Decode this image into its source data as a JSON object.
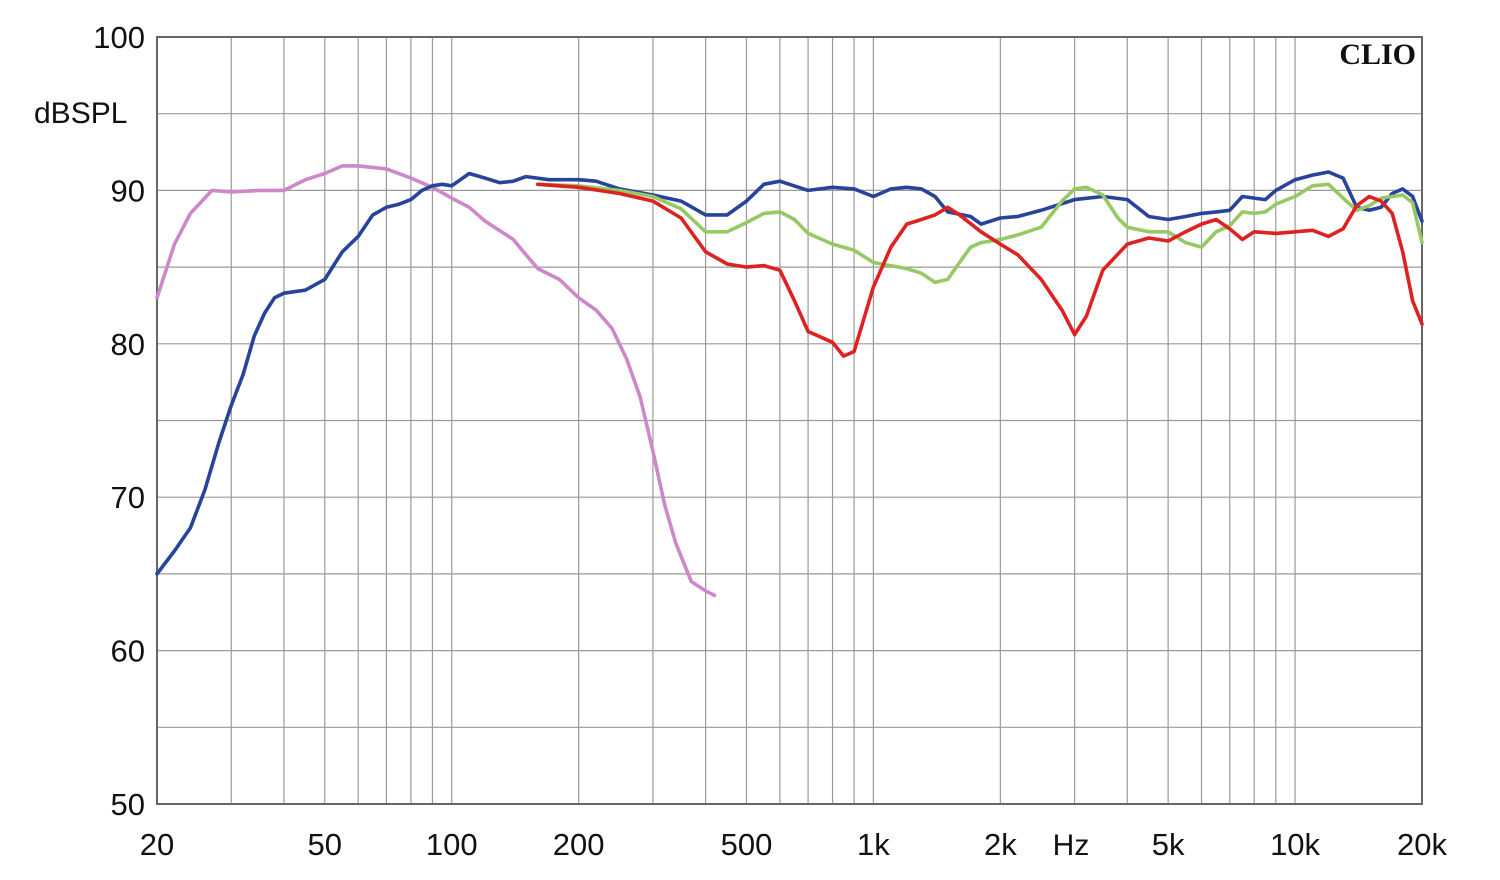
{
  "chart_data": {
    "type": "line",
    "brand": "CLIO",
    "ylabel": "dBSPL",
    "xlabel": "Hz",
    "x_scale": "log",
    "xlim": [
      20,
      20000
    ],
    "ylim": [
      50,
      100
    ],
    "y_ticks": [
      {
        "value": 50,
        "label": "50"
      },
      {
        "value": 60,
        "label": "60"
      },
      {
        "value": 70,
        "label": "70"
      },
      {
        "value": 80,
        "label": "80"
      },
      {
        "value": 90,
        "label": "90"
      },
      {
        "value": 100,
        "label": "100"
      }
    ],
    "x_ticks": [
      {
        "value": 20,
        "label": "20"
      },
      {
        "value": 50,
        "label": "50"
      },
      {
        "value": 100,
        "label": "100"
      },
      {
        "value": 200,
        "label": "200"
      },
      {
        "value": 500,
        "label": "500"
      },
      {
        "value": 1000,
        "label": "1k"
      },
      {
        "value": 2000,
        "label": "2k"
      },
      {
        "value": 5000,
        "label": "5k"
      },
      {
        "value": 10000,
        "label": "10k"
      },
      {
        "value": 20000,
        "label": "20k"
      }
    ],
    "grid": true,
    "colors": {
      "magenta": "#cc88c8",
      "blue": "#27439a",
      "green": "#96c864",
      "red": "#dd2222",
      "grid": "#9a9a9a",
      "axis": "#666666"
    },
    "series": [
      {
        "color": "magenta",
        "points": [
          [
            20,
            83
          ],
          [
            22,
            86.5
          ],
          [
            24,
            88.5
          ],
          [
            27,
            90
          ],
          [
            30,
            89.9
          ],
          [
            35,
            90
          ],
          [
            40,
            90
          ],
          [
            45,
            90.7
          ],
          [
            50,
            91.1
          ],
          [
            55,
            91.6
          ],
          [
            60,
            91.6
          ],
          [
            70,
            91.4
          ],
          [
            80,
            90.8
          ],
          [
            90,
            90.2
          ],
          [
            100,
            89.5
          ],
          [
            110,
            88.9
          ],
          [
            120,
            88
          ],
          [
            140,
            86.8
          ],
          [
            150,
            85.8
          ],
          [
            160,
            84.9
          ],
          [
            180,
            84.2
          ],
          [
            200,
            83
          ],
          [
            220,
            82.2
          ],
          [
            240,
            81
          ],
          [
            260,
            79
          ],
          [
            280,
            76.5
          ],
          [
            300,
            73
          ],
          [
            320,
            69.5
          ],
          [
            340,
            67
          ],
          [
            370,
            64.5
          ],
          [
            400,
            63.9
          ],
          [
            420,
            63.6
          ]
        ]
      },
      {
        "color": "blue",
        "points": [
          [
            20,
            65
          ],
          [
            22,
            66.5
          ],
          [
            24,
            68
          ],
          [
            26,
            70.5
          ],
          [
            28,
            73.5
          ],
          [
            30,
            76
          ],
          [
            32,
            78
          ],
          [
            34,
            80.5
          ],
          [
            36,
            82
          ],
          [
            38,
            83
          ],
          [
            40,
            83.3
          ],
          [
            45,
            83.5
          ],
          [
            50,
            84.2
          ],
          [
            55,
            86
          ],
          [
            60,
            87
          ],
          [
            65,
            88.4
          ],
          [
            70,
            88.9
          ],
          [
            75,
            89.1
          ],
          [
            80,
            89.4
          ],
          [
            85,
            90
          ],
          [
            90,
            90.3
          ],
          [
            95,
            90.4
          ],
          [
            100,
            90.3
          ],
          [
            110,
            91.1
          ],
          [
            120,
            90.8
          ],
          [
            130,
            90.5
          ],
          [
            140,
            90.6
          ],
          [
            150,
            90.9
          ],
          [
            170,
            90.7
          ],
          [
            200,
            90.7
          ],
          [
            220,
            90.6
          ],
          [
            250,
            90.1
          ],
          [
            300,
            89.7
          ],
          [
            350,
            89.3
          ],
          [
            400,
            88.4
          ],
          [
            450,
            88.4
          ],
          [
            500,
            89.3
          ],
          [
            550,
            90.4
          ],
          [
            600,
            90.6
          ],
          [
            700,
            90
          ],
          [
            800,
            90.2
          ],
          [
            900,
            90.1
          ],
          [
            1000,
            89.6
          ],
          [
            1100,
            90.1
          ],
          [
            1200,
            90.2
          ],
          [
            1300,
            90.1
          ],
          [
            1400,
            89.6
          ],
          [
            1500,
            88.6
          ],
          [
            1700,
            88.3
          ],
          [
            1800,
            87.8
          ],
          [
            2000,
            88.2
          ],
          [
            2200,
            88.3
          ],
          [
            2500,
            88.7
          ],
          [
            3000,
            89.4
          ],
          [
            3500,
            89.6
          ],
          [
            4000,
            89.4
          ],
          [
            4500,
            88.3
          ],
          [
            5000,
            88.1
          ],
          [
            5500,
            88.3
          ],
          [
            6000,
            88.5
          ],
          [
            6500,
            88.6
          ],
          [
            7000,
            88.7
          ],
          [
            7500,
            89.6
          ],
          [
            8000,
            89.5
          ],
          [
            8500,
            89.4
          ],
          [
            9000,
            90
          ],
          [
            10000,
            90.7
          ],
          [
            11000,
            91
          ],
          [
            12000,
            91.2
          ],
          [
            13000,
            90.8
          ],
          [
            14000,
            88.9
          ],
          [
            15000,
            88.7
          ],
          [
            16000,
            88.9
          ],
          [
            17000,
            89.8
          ],
          [
            18000,
            90.1
          ],
          [
            19000,
            89.6
          ],
          [
            20000,
            88
          ]
        ]
      },
      {
        "color": "green",
        "points": [
          [
            160,
            90.4
          ],
          [
            200,
            90.3
          ],
          [
            250,
            90
          ],
          [
            300,
            89.6
          ],
          [
            350,
            88.8
          ],
          [
            400,
            87.3
          ],
          [
            450,
            87.3
          ],
          [
            500,
            87.9
          ],
          [
            550,
            88.5
          ],
          [
            600,
            88.6
          ],
          [
            650,
            88.1
          ],
          [
            700,
            87.2
          ],
          [
            800,
            86.5
          ],
          [
            900,
            86.1
          ],
          [
            1000,
            85.3
          ],
          [
            1200,
            84.9
          ],
          [
            1300,
            84.6
          ],
          [
            1400,
            84
          ],
          [
            1500,
            84.2
          ],
          [
            1600,
            85.3
          ],
          [
            1700,
            86.3
          ],
          [
            1800,
            86.6
          ],
          [
            2000,
            86.8
          ],
          [
            2200,
            87.1
          ],
          [
            2500,
            87.6
          ],
          [
            2800,
            89.3
          ],
          [
            3000,
            90.1
          ],
          [
            3200,
            90.2
          ],
          [
            3500,
            89.7
          ],
          [
            3800,
            88.2
          ],
          [
            4000,
            87.6
          ],
          [
            4500,
            87.3
          ],
          [
            5000,
            87.3
          ],
          [
            5500,
            86.6
          ],
          [
            6000,
            86.3
          ],
          [
            6500,
            87.3
          ],
          [
            7000,
            87.7
          ],
          [
            7500,
            88.6
          ],
          [
            8000,
            88.5
          ],
          [
            8500,
            88.6
          ],
          [
            9000,
            89.1
          ],
          [
            10000,
            89.6
          ],
          [
            11000,
            90.3
          ],
          [
            12000,
            90.4
          ],
          [
            13000,
            89.5
          ],
          [
            14000,
            88.7
          ],
          [
            15000,
            89
          ],
          [
            16000,
            89.5
          ],
          [
            18000,
            89.7
          ],
          [
            19000,
            89.2
          ],
          [
            20000,
            86.6
          ]
        ]
      },
      {
        "color": "red",
        "points": [
          [
            160,
            90.4
          ],
          [
            200,
            90.2
          ],
          [
            250,
            89.8
          ],
          [
            300,
            89.3
          ],
          [
            350,
            88.2
          ],
          [
            400,
            86
          ],
          [
            450,
            85.2
          ],
          [
            500,
            85
          ],
          [
            550,
            85.1
          ],
          [
            600,
            84.8
          ],
          [
            650,
            82.8
          ],
          [
            700,
            80.8
          ],
          [
            800,
            80.1
          ],
          [
            850,
            79.2
          ],
          [
            900,
            79.5
          ],
          [
            1000,
            83.7
          ],
          [
            1100,
            86.3
          ],
          [
            1200,
            87.8
          ],
          [
            1300,
            88.1
          ],
          [
            1400,
            88.4
          ],
          [
            1500,
            88.9
          ],
          [
            1600,
            88.4
          ],
          [
            1800,
            87.3
          ],
          [
            2000,
            86.5
          ],
          [
            2200,
            85.8
          ],
          [
            2500,
            84.2
          ],
          [
            2800,
            82.2
          ],
          [
            3000,
            80.6
          ],
          [
            3200,
            81.8
          ],
          [
            3500,
            84.8
          ],
          [
            4000,
            86.5
          ],
          [
            4500,
            86.9
          ],
          [
            5000,
            86.7
          ],
          [
            5500,
            87.3
          ],
          [
            6000,
            87.8
          ],
          [
            6500,
            88.1
          ],
          [
            7000,
            87.5
          ],
          [
            7500,
            86.8
          ],
          [
            8000,
            87.3
          ],
          [
            9000,
            87.2
          ],
          [
            10000,
            87.3
          ],
          [
            11000,
            87.4
          ],
          [
            12000,
            87
          ],
          [
            13000,
            87.5
          ],
          [
            14000,
            89
          ],
          [
            15000,
            89.6
          ],
          [
            16000,
            89.3
          ],
          [
            17000,
            88.5
          ],
          [
            18000,
            86
          ],
          [
            19000,
            82.8
          ],
          [
            20000,
            81.3
          ]
        ]
      }
    ]
  }
}
